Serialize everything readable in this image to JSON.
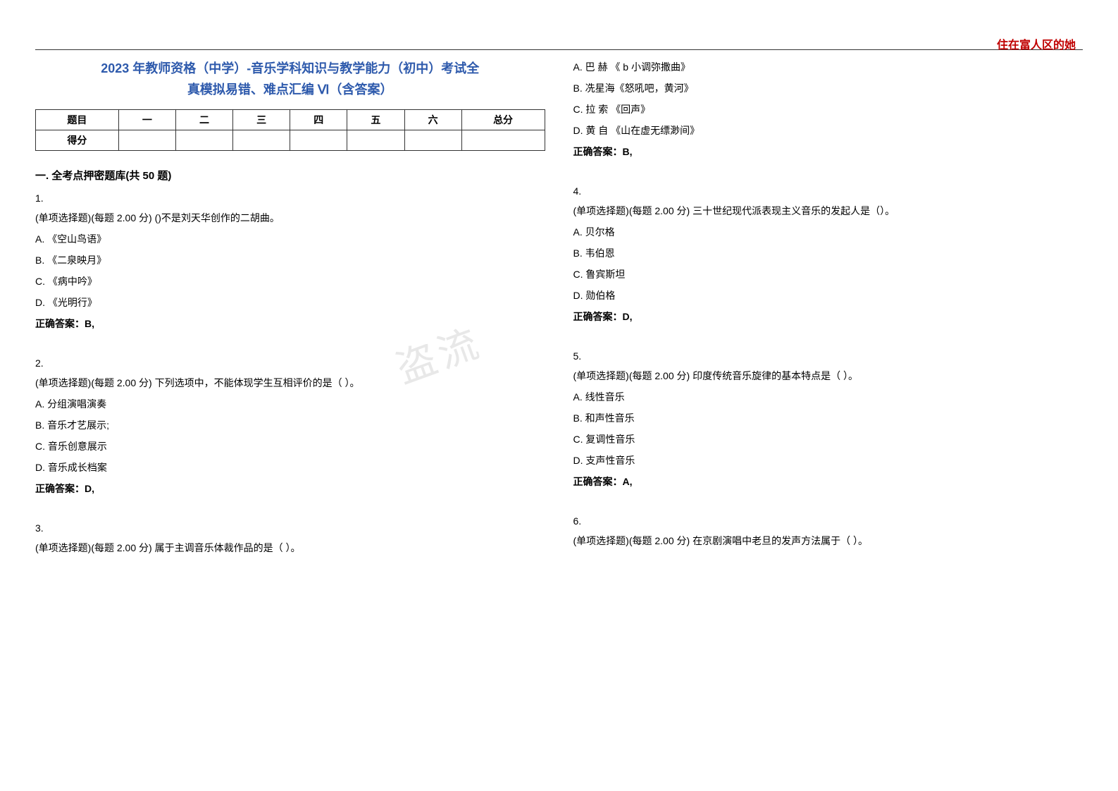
{
  "brand": "住在富人区的她",
  "title_line1": "2023 年教师资格（中学）-音乐学科知识与教学能力（初中）考试全",
  "title_line2": "真模拟易错、难点汇编 Ⅵ（含答案）",
  "watermark": "盗流",
  "score_table": {
    "headers": [
      "题目",
      "一",
      "二",
      "三",
      "四",
      "五",
      "六",
      "总分"
    ],
    "row_label": "得分"
  },
  "section_heading": "一. 全考点押密题库(共 50 题)",
  "left_questions": [
    {
      "num": "1.",
      "stem": "(单项选择题)(每题 2.00 分) ()不是刘天华创作的二胡曲。",
      "options": [
        "A. 《空山鸟语》",
        "B. 《二泉映月》",
        "C. 《病中吟》",
        "D. 《光明行》"
      ],
      "answer": "正确答案：B,"
    },
    {
      "num": "2.",
      "stem": "(单项选择题)(每题 2.00 分) 下列选项中，不能体现学生互相评价的是（ ）。",
      "options": [
        "A. 分组演唱演奏",
        "B. 音乐才艺展示;",
        "C. 音乐创意展示",
        "D. 音乐成长档案"
      ],
      "answer": "正确答案：D,"
    },
    {
      "num": "3.",
      "stem": "(单项选择题)(每题 2.00 分) 属于主调音乐体裁作品的是（ ）。",
      "options": [],
      "answer": ""
    }
  ],
  "right_top_options": [
    "A. 巴 赫 《 b 小调弥撒曲》",
    "B. 冼星海《怒吼吧，黄河》",
    "C. 拉 索 《回声》",
    "D. 黄 自 《山在虚无缥渺间》"
  ],
  "right_top_answer": "正确答案：B,",
  "right_questions": [
    {
      "num": "4.",
      "stem": "(单项选择题)(每题 2.00 分) 三十世纪现代派表现主义音乐的发起人是（）。",
      "options": [
        "A. 贝尔格",
        "B. 韦伯恩",
        "C. 鲁宾斯坦",
        "D. 勋伯格"
      ],
      "answer": "正确答案：D,"
    },
    {
      "num": "5.",
      "stem": "(单项选择题)(每题 2.00 分) 印度传统音乐旋律的基本特点是（ ）。",
      "options": [
        "A. 线性音乐",
        "B. 和声性音乐",
        "C. 复调性音乐",
        "D. 支声性音乐"
      ],
      "answer": "正确答案：A,"
    },
    {
      "num": "6.",
      "stem": "(单项选择题)(每题 2.00 分) 在京剧演唱中老旦的发声方法属于（ ）。",
      "options": [],
      "answer": ""
    }
  ]
}
